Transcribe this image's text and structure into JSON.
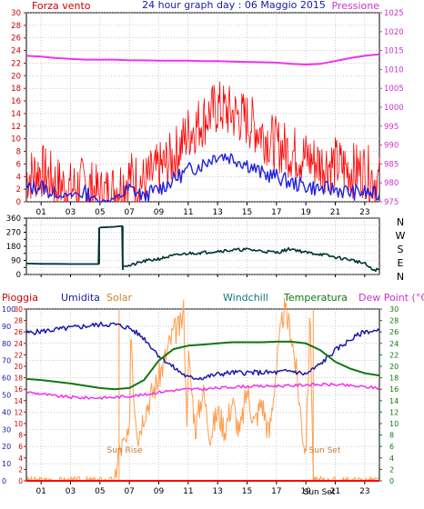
{
  "colors": {
    "wind": "#ff0000",
    "gust_avg": "#2222dd",
    "pressure": "#ee33ee",
    "direction": "#003333",
    "humidity": "#1a1aa6",
    "solar": "#ff9d4d",
    "temperature": "#117711",
    "dewpoint": "#ee33ee",
    "rain": "#ff0000",
    "axis_left": "#cc0000",
    "axis_right_pressure": "#cc33cc",
    "axis_right_temp": "#117711",
    "grid": "#aaaaaa"
  },
  "header": {
    "left_label": "Forza vento",
    "title": "24 hour graph day : 06 Maggio 2015",
    "right_label": "Pressione"
  },
  "direction_labels": [
    "N",
    "W",
    "S",
    "E",
    "N"
  ],
  "bottom_legend": {
    "rain": "Pioggia",
    "humidity": "Umidita",
    "solar": "Solar",
    "windchill": "Windchill",
    "temperature": "Temperatura",
    "dewpoint": "Dew Point (°C)"
  },
  "annotations": {
    "sunrise": "Sun Rise",
    "sunset": "Sun Set",
    "sunset_axis": "Sun Set"
  },
  "chart_data": [
    {
      "type": "line",
      "name": "wind-speed-and-pressure",
      "title": "24 hour graph day : 06 Maggio 2015",
      "ylabel": "Forza vento",
      "y2label": "Pressione",
      "x_ticks": [
        "01",
        "03",
        "05",
        "07",
        "09",
        "11",
        "13",
        "15",
        "17",
        "19",
        "21",
        "23"
      ],
      "xlim": [
        0,
        24
      ],
      "ylim": [
        0,
        30
      ],
      "y_ticks": [
        0,
        2,
        4,
        6,
        8,
        10,
        12,
        14,
        16,
        18,
        20,
        22,
        24,
        26,
        28,
        30
      ],
      "y2lim": [
        975,
        1025
      ],
      "y2_ticks": [
        975,
        980,
        985,
        990,
        995,
        1000,
        1005,
        1010,
        1015,
        1020,
        1025
      ],
      "series": [
        {
          "name": "Pressione",
          "axis": "right",
          "x": [
            0,
            1,
            2,
            3,
            4,
            5,
            6,
            7,
            8,
            9,
            10,
            11,
            12,
            13,
            14,
            15,
            16,
            17,
            18,
            19,
            20,
            21,
            22,
            23,
            24
          ],
          "values": [
            1013.6,
            1013.4,
            1013.0,
            1012.8,
            1012.6,
            1012.6,
            1012.6,
            1012.4,
            1012.4,
            1012.3,
            1012.3,
            1012.3,
            1012.2,
            1012.2,
            1012.1,
            1012.0,
            1011.9,
            1011.8,
            1011.5,
            1011.3,
            1011.5,
            1012.2,
            1013.0,
            1013.6,
            1014.0
          ]
        },
        {
          "name": "gust",
          "axis": "left",
          "x": [
            0,
            1,
            2,
            3,
            4,
            5,
            6,
            7,
            8,
            9,
            10,
            11,
            12,
            13,
            14,
            15,
            16,
            17,
            18,
            19,
            20,
            21,
            22,
            23,
            24
          ],
          "values": [
            4,
            5,
            3,
            2,
            3,
            1,
            2,
            4,
            3,
            5,
            7,
            11,
            13,
            15,
            14,
            13,
            11,
            9,
            8,
            7,
            6,
            6,
            5,
            5,
            3
          ]
        },
        {
          "name": "average",
          "axis": "left",
          "x": [
            0,
            1,
            2,
            3,
            4,
            5,
            6,
            7,
            8,
            9,
            10,
            11,
            12,
            13,
            14,
            15,
            16,
            17,
            18,
            19,
            20,
            21,
            22,
            23,
            24
          ],
          "values": [
            2,
            2.5,
            1,
            1,
            1.5,
            0,
            0.5,
            2,
            1,
            2,
            3.5,
            5,
            6,
            7.5,
            7,
            6,
            4.5,
            4,
            3,
            2.5,
            2,
            2,
            1.5,
            1.5,
            1
          ]
        }
      ]
    },
    {
      "type": "line",
      "name": "wind-direction",
      "x_ticks": [],
      "xlim": [
        0,
        24
      ],
      "ylim": [
        0,
        360
      ],
      "y_ticks": [
        0,
        45,
        90,
        135,
        180,
        225,
        270,
        315,
        360
      ],
      "series": [
        {
          "name": "direction",
          "x": [
            0,
            1,
            2,
            3,
            4,
            4.9,
            4.95,
            5,
            6,
            6.5,
            6.55,
            6.6,
            7,
            8,
            9,
            10,
            11,
            12,
            13,
            14,
            15,
            16,
            17,
            18,
            19,
            20,
            21,
            22,
            23,
            23.5,
            24
          ],
          "values": [
            70,
            68,
            68,
            67,
            67,
            67,
            300,
            300,
            305,
            310,
            30,
            60,
            55,
            85,
            100,
            120,
            135,
            140,
            150,
            155,
            160,
            150,
            140,
            165,
            140,
            130,
            110,
            95,
            70,
            30,
            30
          ]
        }
      ]
    },
    {
      "type": "line",
      "name": "humidity-solar-temperature",
      "x_ticks": [
        "01",
        "03",
        "05",
        "07",
        "09",
        "11",
        "13",
        "15",
        "17",
        "19",
        "21",
        "23"
      ],
      "xlim": [
        0,
        24
      ],
      "ylim": [
        0,
        100
      ],
      "y_ticks": [
        0,
        10,
        20,
        30,
        40,
        50,
        60,
        70,
        80,
        90,
        100
      ],
      "y_mid_ticks": [
        0,
        2,
        4,
        6,
        8,
        10,
        12,
        14,
        16,
        18,
        20,
        22,
        24,
        26,
        28,
        30
      ],
      "y2lim": [
        0,
        30
      ],
      "y2_ticks": [
        0,
        2,
        4,
        6,
        8,
        10,
        12,
        14,
        16,
        18,
        20,
        22,
        24,
        26,
        28,
        30
      ],
      "series": [
        {
          "name": "Umidita",
          "axis": "left",
          "x": [
            0,
            1,
            2,
            3,
            4,
            5,
            6,
            7,
            8,
            9,
            10,
            11,
            12,
            13,
            14,
            15,
            16,
            17,
            18,
            19,
            20,
            21,
            22,
            23,
            24
          ],
          "values": [
            86,
            87,
            88,
            89,
            90,
            91,
            91,
            89,
            83,
            73,
            66,
            60,
            60,
            62,
            63,
            63,
            63,
            63,
            64,
            62,
            68,
            76,
            82,
            87,
            87
          ]
        },
        {
          "name": "Temperatura",
          "axis": "right",
          "x": [
            0,
            1,
            2,
            3,
            4,
            5,
            6,
            7,
            8,
            9,
            10,
            11,
            12,
            13,
            14,
            15,
            16,
            17,
            18,
            19,
            20,
            21,
            22,
            23,
            24
          ],
          "values": [
            17.8,
            17.6,
            17.3,
            17.0,
            16.6,
            16.2,
            16.0,
            16.2,
            17.6,
            21.0,
            23.0,
            23.6,
            23.8,
            24.0,
            24.2,
            24.2,
            24.2,
            24.3,
            24.3,
            24.0,
            22.8,
            20.8,
            19.6,
            18.8,
            18.4
          ]
        },
        {
          "name": "Dew Point (°C)",
          "axis": "right",
          "x": [
            0,
            1,
            2,
            3,
            4,
            5,
            6,
            7,
            8,
            9,
            10,
            11,
            12,
            13,
            14,
            15,
            16,
            17,
            18,
            19,
            20,
            21,
            22,
            23,
            24
          ],
          "values": [
            15.5,
            15.2,
            14.8,
            14.6,
            14.5,
            14.5,
            14.6,
            14.8,
            15.0,
            15.5,
            15.8,
            16.0,
            16.0,
            16.2,
            16.4,
            16.5,
            16.5,
            16.6,
            16.6,
            16.8,
            16.8,
            16.8,
            16.6,
            16.4,
            16.2
          ]
        },
        {
          "name": "Solar",
          "axis": "right",
          "x": [
            0,
            5.5,
            6.0,
            6.2,
            6.5,
            7.0,
            7.1,
            7.3,
            7.6,
            8.0,
            8.5,
            9.0,
            9.5,
            10.0,
            10.5,
            10.7,
            10.9,
            11.0,
            11.5,
            12.0,
            12.5,
            13.0,
            13.5,
            14.0,
            14.5,
            15.0,
            15.5,
            16.0,
            16.5,
            17.0,
            17.5,
            18.0,
            18.3,
            18.6,
            18.8,
            19.0,
            19.3,
            19.5,
            24
          ],
          "values": [
            0,
            0,
            0,
            4,
            6,
            7,
            28,
            15,
            8,
            12,
            15,
            18,
            22,
            26,
            27,
            30,
            10,
            22,
            9,
            16,
            8,
            12,
            9,
            14,
            8,
            16,
            10,
            14,
            8,
            20,
            30,
            26,
            20,
            13,
            8,
            5,
            30,
            0,
            0
          ]
        },
        {
          "name": "Pioggia",
          "axis": "left",
          "x": [
            0,
            24
          ],
          "values": [
            0,
            0
          ]
        }
      ]
    }
  ]
}
